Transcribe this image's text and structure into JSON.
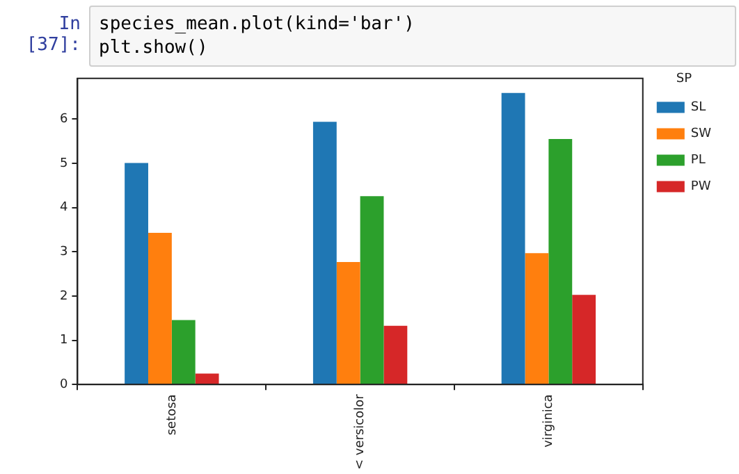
{
  "chart_data": {
    "type": "bar",
    "legend_title": "SP",
    "annotations": [
      "In [37]:",
      "species_mean.plot(kind='bar')",
      "plt.show()"
    ],
    "categories": [
      "setosa",
      "< versicolor",
      "virginica"
    ],
    "series": [
      {
        "name": "SL",
        "color": "#1f77b4",
        "values": [
          5.01,
          5.94,
          6.59
        ]
      },
      {
        "name": "SW",
        "color": "#ff7f0e",
        "values": [
          3.43,
          2.77,
          2.97
        ]
      },
      {
        "name": "PL",
        "color": "#2ca02c",
        "values": [
          1.46,
          4.26,
          5.55
        ]
      },
      {
        "name": "PW",
        "color": "#d62728",
        "values": [
          0.25,
          1.33,
          2.03
        ]
      }
    ],
    "ylim": [
      0,
      6.92
    ],
    "yticks": [
      0,
      1,
      2,
      3,
      4,
      5,
      6
    ],
    "grid": false,
    "legend": "right"
  }
}
